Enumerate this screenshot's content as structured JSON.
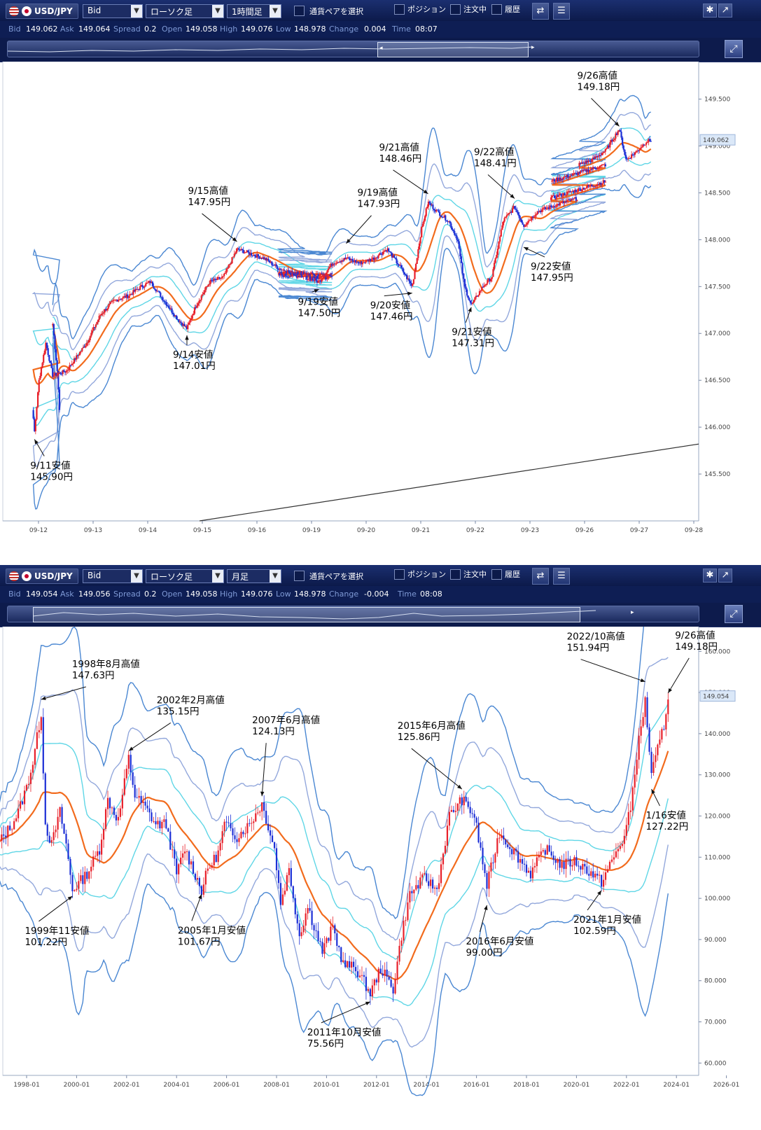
{
  "panels": [
    {
      "toolbar": {
        "pair_label": "USD/JPY",
        "price_type": "Bid",
        "chart_type": "ローソク足",
        "timeframe": "1時間足",
        "select_pair": "通貨ペアを選択",
        "position": "ポジション",
        "orders": "注文中",
        "history": "履歴"
      },
      "info": {
        "bid_label": "Bid",
        "bid": "149.062",
        "ask_label": "Ask",
        "ask": "149.064",
        "spread_label": "Spread",
        "spread": "0.2",
        "open_label": "Open",
        "open": "149.058",
        "high_label": "High",
        "high": "149.076",
        "low_label": "Low",
        "low": "148.978",
        "change_label": "Change",
        "change": "0.004",
        "time_label": "Time",
        "time": "08:07"
      },
      "current_price": "149.062",
      "y_ticks": [
        "149.500",
        "149.000",
        "148.500",
        "148.000",
        "147.500",
        "147.000",
        "146.500",
        "146.000",
        "145.500"
      ],
      "x_ticks": [
        "09-12",
        "09-13",
        "09-14",
        "09-15",
        "09-16",
        "09-19",
        "09-20",
        "09-21",
        "09-22",
        "09-23",
        "09-26",
        "09-27",
        "09-28"
      ],
      "annotations": [
        {
          "l1": "9/26高値",
          "l2": "149.18円"
        },
        {
          "l1": "9/21高値",
          "l2": "148.46円"
        },
        {
          "l1": "9/22高値",
          "l2": "148.41円"
        },
        {
          "l1": "9/15高値",
          "l2": "147.95円"
        },
        {
          "l1": "9/19高値",
          "l2": "147.93円"
        },
        {
          "l1": "9/22安値",
          "l2": "147.95円"
        },
        {
          "l1": "9/19安値",
          "l2": "147.50円"
        },
        {
          "l1": "9/20安値",
          "l2": "147.46円"
        },
        {
          "l1": "9/21安値",
          "l2": "147.31円"
        },
        {
          "l1": "9/14安値",
          "l2": "147.01円"
        },
        {
          "l1": "9/11安値",
          "l2": "145.90円"
        }
      ]
    },
    {
      "toolbar": {
        "pair_label": "USD/JPY",
        "price_type": "Bid",
        "chart_type": "ローソク足",
        "timeframe": "月足",
        "select_pair": "通貨ペアを選択",
        "position": "ポジション",
        "orders": "注文中",
        "history": "履歴"
      },
      "info": {
        "bid_label": "Bid",
        "bid": "149.054",
        "ask_label": "Ask",
        "ask": "149.056",
        "spread_label": "Spread",
        "spread": "0.2",
        "open_label": "Open",
        "open": "149.058",
        "high_label": "High",
        "high": "149.076",
        "low_label": "Low",
        "low": "148.978",
        "change_label": "Change",
        "change": "-0.004",
        "time_label": "Time",
        "time": "08:08"
      },
      "current_price": "149.054",
      "y_ticks": [
        "160.000",
        "150.000",
        "140.000",
        "130.000",
        "120.000",
        "110.000",
        "100.000",
        "90.000",
        "80.000",
        "70.000",
        "60.000"
      ],
      "x_ticks": [
        "1998-01",
        "2000-01",
        "2002-01",
        "2004-01",
        "2006-01",
        "2008-01",
        "2010-01",
        "2012-01",
        "2014-01",
        "2016-01",
        "2018-01",
        "2020-01",
        "2022-01",
        "2024-01",
        "2026-01"
      ],
      "annotations": [
        {
          "l1": "1998年8月高値",
          "l2": "147.63円"
        },
        {
          "l1": "2002年2月高値",
          "l2": "135.15円"
        },
        {
          "l1": "2007年6月高値",
          "l2": "124.13円"
        },
        {
          "l1": "2015年6月高値",
          "l2": "125.86円"
        },
        {
          "l1": "2022/10高値",
          "l2": "151.94円"
        },
        {
          "l1": "9/26高値",
          "l2": "149.18円"
        },
        {
          "l1": "1/16安値",
          "l2": "127.22円"
        },
        {
          "l1": "1999年11安値",
          "l2": "101.22円"
        },
        {
          "l1": "2005年1月安値",
          "l2": "101.67円"
        },
        {
          "l1": "2011年10月安値",
          "l2": "75.56円"
        },
        {
          "l1": "2016年6月安値",
          "l2": "99.00円"
        },
        {
          "l1": "2021年1月安値",
          "l2": "102.59円"
        }
      ]
    }
  ],
  "chart_data": [
    {
      "type": "candlestick",
      "title": "",
      "ylim": [
        145.0,
        149.9
      ],
      "x": [
        "09-12",
        "09-13",
        "09-14",
        "09-15",
        "09-16",
        "09-19",
        "09-20",
        "09-21",
        "09-22",
        "09-23",
        "09-26",
        "09-27"
      ],
      "close_path": [
        [
          "09-11 21:00",
          147.1
        ],
        [
          "09-11 23:00",
          146.6
        ],
        [
          "09-12 00:00",
          146.2
        ],
        [
          "09-12 01:00",
          145.95
        ],
        [
          "09-12 03:00",
          146.5
        ],
        [
          "09-12 06:00",
          146.9
        ],
        [
          "09-12 09:00",
          146.55
        ],
        [
          "09-12 15:00",
          146.6
        ],
        [
          "09-13 00:00",
          146.9
        ],
        [
          "09-13 06:00",
          147.2
        ],
        [
          "09-13 12:00",
          147.35
        ],
        [
          "09-13 18:00",
          147.4
        ],
        [
          "09-14 00:00",
          147.5
        ],
        [
          "09-14 04:00",
          147.55
        ],
        [
          "09-14 10:00",
          147.35
        ],
        [
          "09-14 16:00",
          147.15
        ],
        [
          "09-14 20:00",
          147.05
        ],
        [
          "09-15 00:00",
          147.3
        ],
        [
          "09-15 06:00",
          147.55
        ],
        [
          "09-15 12:00",
          147.6
        ],
        [
          "09-15 18:00",
          147.9
        ],
        [
          "09-16 00:00",
          147.85
        ],
        [
          "09-16 06:00",
          147.8
        ],
        [
          "09-16 12:00",
          147.7
        ],
        [
          "09-16 18:00",
          147.65
        ],
        [
          "09-19 00:00",
          147.6
        ],
        [
          "09-19 06:00",
          147.55
        ],
        [
          "09-19 12:00",
          147.75
        ],
        [
          "09-19 18:00",
          147.8
        ],
        [
          "09-20 00:00",
          147.75
        ],
        [
          "09-20 06:00",
          147.8
        ],
        [
          "09-20 12:00",
          147.9
        ],
        [
          "09-20 18:00",
          147.7
        ],
        [
          "09-20 23:00",
          147.5
        ],
        [
          "09-21 03:00",
          148.1
        ],
        [
          "09-21 06:00",
          148.4
        ],
        [
          "09-21 10:00",
          148.3
        ],
        [
          "09-21 15:00",
          148.2
        ],
        [
          "09-21 19:00",
          148.0
        ],
        [
          "09-21 22:00",
          147.5
        ],
        [
          "09-22 01:00",
          147.3
        ],
        [
          "09-22 06:00",
          147.5
        ],
        [
          "09-22 10:00",
          147.6
        ],
        [
          "09-22 15:00",
          148.2
        ],
        [
          "09-22 20:00",
          148.35
        ],
        [
          "09-23 00:00",
          148.15
        ],
        [
          "09-23 06:00",
          148.3
        ],
        [
          "09-23 12:00",
          148.35
        ],
        [
          "09-23 18:00",
          148.4
        ],
        [
          "09-26 00:00",
          148.8
        ],
        [
          "09-26 06:00",
          148.85
        ],
        [
          "09-26 12:00",
          148.95
        ],
        [
          "09-26 18:00",
          149.18
        ],
        [
          "09-26 21:00",
          148.85
        ],
        [
          "09-27 02:00",
          148.95
        ],
        [
          "09-27 06:00",
          149.05
        ],
        [
          "09-27 08:00",
          149.06
        ]
      ],
      "annotations_points": [
        {
          "date": "09-26 18:00",
          "price": 149.18
        },
        {
          "date": "09-21 06:00",
          "price": 148.46
        },
        {
          "date": "09-22 20:00",
          "price": 148.41
        },
        {
          "date": "09-15 18:00",
          "price": 147.95
        },
        {
          "date": "09-19 18:00",
          "price": 147.93
        },
        {
          "date": "09-23 00:00",
          "price": 147.95
        },
        {
          "date": "09-19 06:00",
          "price": 147.5
        },
        {
          "date": "09-20 23:00",
          "price": 147.46
        },
        {
          "date": "09-22 01:00",
          "price": 147.31
        },
        {
          "date": "09-14 20:00",
          "price": 147.01
        },
        {
          "date": "09-12 01:00",
          "price": 145.9
        }
      ]
    },
    {
      "type": "candlestick",
      "title": "",
      "ylim": [
        57,
        166
      ],
      "x": [
        "1998-01",
        "2000-01",
        "2002-01",
        "2004-01",
        "2006-01",
        "2008-01",
        "2010-01",
        "2012-01",
        "2014-01",
        "2016-01",
        "2018-01",
        "2020-01",
        "2022-01",
        "2024-01",
        "2026-01"
      ],
      "close_path": [
        [
          "1996-11",
          113
        ],
        [
          "1997-06",
          118
        ],
        [
          "1997-09",
          121
        ],
        [
          "1998-01",
          127
        ],
        [
          "1998-04",
          133
        ],
        [
          "1998-08",
          145
        ],
        [
          "1998-10",
          118
        ],
        [
          "1999-01",
          113
        ],
        [
          "1999-05",
          121
        ],
        [
          "1999-08",
          113
        ],
        [
          "1999-11",
          102
        ],
        [
          "2000-06",
          106
        ],
        [
          "2000-12",
          112
        ],
        [
          "2001-04",
          124
        ],
        [
          "2001-09",
          119
        ],
        [
          "2002-02",
          134
        ],
        [
          "2002-05",
          125
        ],
        [
          "2002-10",
          122
        ],
        [
          "2003-03",
          118
        ],
        [
          "2003-08",
          118
        ],
        [
          "2004-01",
          106
        ],
        [
          "2004-05",
          112
        ],
        [
          "2005-01",
          102
        ],
        [
          "2005-04",
          107
        ],
        [
          "2005-09",
          111
        ],
        [
          "2005-12",
          118
        ],
        [
          "2006-06",
          115
        ],
        [
          "2006-12",
          118
        ],
        [
          "2007-06",
          123
        ],
        [
          "2007-12",
          112
        ],
        [
          "2008-03",
          99
        ],
        [
          "2008-07",
          107
        ],
        [
          "2008-12",
          91
        ],
        [
          "2009-04",
          98
        ],
        [
          "2009-11",
          87
        ],
        [
          "2010-04",
          93
        ],
        [
          "2010-09",
          84
        ],
        [
          "2011-03",
          83
        ],
        [
          "2011-10",
          77
        ],
        [
          "2012-03",
          83
        ],
        [
          "2012-09",
          78
        ],
        [
          "2013-01",
          91
        ],
        [
          "2013-05",
          101
        ],
        [
          "2013-12",
          105
        ],
        [
          "2014-06",
          102
        ],
        [
          "2014-12",
          120
        ],
        [
          "2015-06",
          124
        ],
        [
          "2015-12",
          120
        ],
        [
          "2016-06",
          103
        ],
        [
          "2016-12",
          116
        ],
        [
          "2017-06",
          112
        ],
        [
          "2018-03",
          106
        ],
        [
          "2018-10",
          112
        ],
        [
          "2019-06",
          108
        ],
        [
          "2019-12",
          109
        ],
        [
          "2020-06",
          107
        ],
        [
          "2021-01",
          104
        ],
        [
          "2021-12",
          115
        ],
        [
          "2022-03",
          122
        ],
        [
          "2022-06",
          135
        ],
        [
          "2022-10",
          148
        ],
        [
          "2023-01",
          130
        ],
        [
          "2023-04",
          136
        ],
        [
          "2023-07",
          142
        ],
        [
          "2023-09",
          149.2
        ]
      ],
      "annotations_points": [
        {
          "date": "1998-08",
          "price": 147.63
        },
        {
          "date": "2002-02",
          "price": 135.15
        },
        {
          "date": "2007-06",
          "price": 124.13
        },
        {
          "date": "2015-06",
          "price": 125.86
        },
        {
          "date": "2022-10",
          "price": 151.94
        },
        {
          "date": "2023-09",
          "price": 149.18
        },
        {
          "date": "2023-01",
          "price": 127.22
        },
        {
          "date": "1999-11",
          "price": 101.22
        },
        {
          "date": "2005-01",
          "price": 101.67
        },
        {
          "date": "2011-10",
          "price": 75.56
        },
        {
          "date": "2016-06",
          "price": 99.0
        },
        {
          "date": "2021-01",
          "price": 102.59
        }
      ]
    }
  ],
  "colors": {
    "candle_up": "#e8202a",
    "candle_down": "#1c2fd6",
    "ma_line": "#f26b1d",
    "band_outer": "#4a87d2",
    "band_mid": "#93a8dc",
    "band_inner": "#5fd6e6",
    "toolbar_bg": "#13225b",
    "price_tag": "#dbe8f8"
  }
}
